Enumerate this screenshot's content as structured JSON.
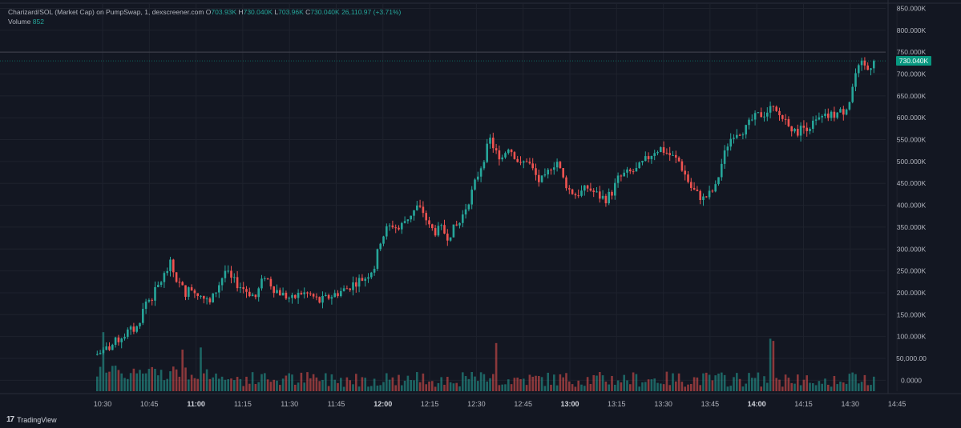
{
  "legend": {
    "symbol": "Charizard/SOL (Market Cap) on PumpSwap, 1, dexscreener.com",
    "o_label": "O",
    "o_value": "703.93K",
    "h_label": "H",
    "h_value": "730.040K",
    "l_label": "L",
    "l_value": "703.96K",
    "c_label": "C",
    "c_value": "730.040K",
    "change": "26,110.97 (+3.71%)",
    "volume_label": "Volume",
    "volume_value": "852"
  },
  "last_price_tag": "730.040K",
  "brand": {
    "logo": "17",
    "name": "TradingView"
  },
  "colors": {
    "up": "#26a69a",
    "down": "#ef5350",
    "background": "#131722",
    "grid": "#1e222d",
    "tag": "#089981"
  },
  "chart_data": {
    "type": "candlestick",
    "y_axis": {
      "min": -25000,
      "max": 860000,
      "ticks": [
        850000,
        800000,
        750000,
        700000,
        650000,
        600000,
        550000,
        500000,
        450000,
        400000,
        350000,
        300000,
        250000,
        200000,
        150000,
        100000,
        50000,
        0
      ],
      "tick_labels": [
        "850.000K",
        "800.000K",
        "750.000K",
        "700.000K",
        "650.000K",
        "600.000K",
        "550.000K",
        "500.000K",
        "450.000K",
        "400.000K",
        "350.000K",
        "300.000K",
        "250.000K",
        "200.000K",
        "150.000K",
        "100.000K",
        "50,000.00",
        "0.0000"
      ],
      "side": "right"
    },
    "x_axis": {
      "ticks": [
        "10:30",
        "10:45",
        "11:00",
        "11:15",
        "11:30",
        "11:45",
        "12:00",
        "12:15",
        "12:30",
        "12:45",
        "13:00",
        "13:15",
        "13:30",
        "13:45",
        "14:00",
        "14:15",
        "14:30",
        "14:45"
      ],
      "bold": [
        "11:00",
        "12:00",
        "13:00",
        "14:00"
      ]
    },
    "crosshair_level": 750000,
    "last_close": 730040,
    "grid": true,
    "close_path_k": [
      [
        0,
        60
      ],
      [
        4,
        75
      ],
      [
        8,
        100
      ],
      [
        10,
        110
      ],
      [
        13,
        120
      ],
      [
        16,
        180
      ],
      [
        18,
        190
      ],
      [
        22,
        240
      ],
      [
        24,
        265
      ],
      [
        26,
        230
      ],
      [
        29,
        200
      ],
      [
        31,
        210
      ],
      [
        34,
        195
      ],
      [
        37,
        175
      ],
      [
        40,
        220
      ],
      [
        42,
        250
      ],
      [
        44,
        230
      ],
      [
        46,
        220
      ],
      [
        49,
        205
      ],
      [
        52,
        190
      ],
      [
        55,
        240
      ],
      [
        58,
        210
      ],
      [
        61,
        195
      ],
      [
        64,
        185
      ],
      [
        67,
        200
      ],
      [
        70,
        195
      ],
      [
        73,
        180
      ],
      [
        76,
        190
      ],
      [
        79,
        200
      ],
      [
        82,
        210
      ],
      [
        85,
        225
      ],
      [
        88,
        235
      ],
      [
        91,
        260
      ],
      [
        93,
        320
      ],
      [
        95,
        345
      ],
      [
        97,
        355
      ],
      [
        99,
        345
      ],
      [
        101,
        365
      ],
      [
        103,
        380
      ],
      [
        105,
        395
      ],
      [
        107,
        385
      ],
      [
        109,
        350
      ],
      [
        111,
        340
      ],
      [
        113,
        345
      ],
      [
        115,
        330
      ],
      [
        117,
        345
      ],
      [
        119,
        360
      ],
      [
        121,
        395
      ],
      [
        123,
        430
      ],
      [
        125,
        470
      ],
      [
        127,
        510
      ],
      [
        129,
        550
      ],
      [
        131,
        520
      ],
      [
        133,
        510
      ],
      [
        135,
        535
      ],
      [
        137,
        515
      ],
      [
        139,
        490
      ],
      [
        141,
        505
      ],
      [
        143,
        480
      ],
      [
        145,
        455
      ],
      [
        147,
        460
      ],
      [
        149,
        490
      ],
      [
        151,
        500
      ],
      [
        153,
        460
      ],
      [
        155,
        435
      ],
      [
        157,
        425
      ],
      [
        159,
        430
      ],
      [
        161,
        440
      ],
      [
        163,
        430
      ],
      [
        165,
        420
      ],
      [
        167,
        415
      ],
      [
        169,
        430
      ],
      [
        171,
        460
      ],
      [
        173,
        470
      ],
      [
        175,
        475
      ],
      [
        177,
        480
      ],
      [
        179,
        495
      ],
      [
        181,
        510
      ],
      [
        183,
        525
      ],
      [
        185,
        530
      ],
      [
        187,
        520
      ],
      [
        189,
        510
      ],
      [
        191,
        500
      ],
      [
        193,
        470
      ],
      [
        195,
        440
      ],
      [
        197,
        425
      ],
      [
        199,
        415
      ],
      [
        201,
        425
      ],
      [
        203,
        440
      ],
      [
        205,
        495
      ],
      [
        207,
        540
      ],
      [
        209,
        565
      ],
      [
        211,
        570
      ],
      [
        213,
        575
      ],
      [
        215,
        595
      ],
      [
        217,
        605
      ],
      [
        219,
        610
      ],
      [
        221,
        620
      ],
      [
        223,
        610
      ],
      [
        225,
        600
      ],
      [
        227,
        590
      ],
      [
        229,
        565
      ],
      [
        231,
        575
      ],
      [
        233,
        580
      ],
      [
        235,
        585
      ],
      [
        237,
        595
      ],
      [
        239,
        600
      ],
      [
        241,
        605
      ],
      [
        243,
        610
      ],
      [
        245,
        615
      ],
      [
        247,
        640
      ],
      [
        249,
        700
      ],
      [
        251,
        720
      ],
      [
        253,
        710
      ],
      [
        255,
        730.04
      ]
    ],
    "volume_scale_max": 140,
    "volume_spikes": [
      [
        2,
        135
      ],
      [
        28,
        95
      ],
      [
        34,
        100
      ],
      [
        131,
        110
      ],
      [
        221,
        120
      ],
      [
        222,
        115
      ]
    ]
  }
}
